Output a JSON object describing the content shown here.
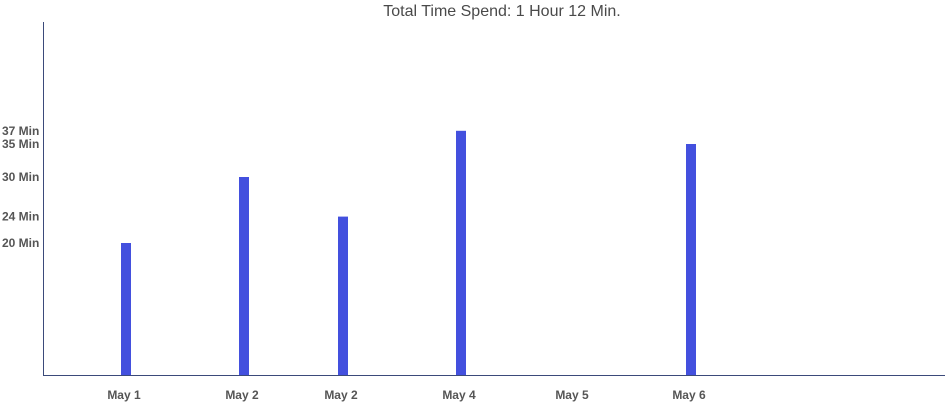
{
  "chart_data": {
    "type": "bar",
    "title": "Total Time Spend: 1 Hour 12 Min.",
    "xlabel": "",
    "ylabel": "",
    "categories": [
      "May 1",
      "May 2",
      "May 2",
      "May 4",
      "May 5",
      "May 6"
    ],
    "values": [
      20,
      30,
      24,
      37,
      null,
      35
    ],
    "y_tick_values": [
      20,
      24,
      30,
      35,
      37
    ],
    "y_tick_labels": [
      "20 Min",
      "24 Min",
      "30 Min",
      "35 Min",
      "37 Min"
    ],
    "ylim": [
      0,
      46
    ],
    "grid": false,
    "legend": "none",
    "bar_color": "#4350de",
    "axis_color": "#3b4a7a"
  }
}
